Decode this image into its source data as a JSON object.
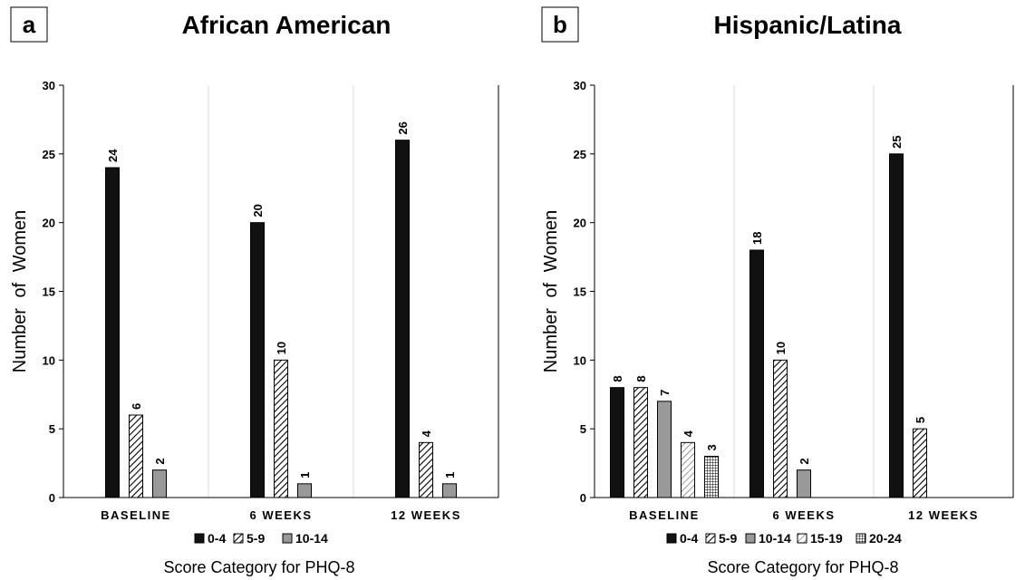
{
  "chart_data": [
    {
      "type": "bar",
      "panel": "a",
      "title": "African American",
      "ylabel": "Number of Women",
      "xlabel": "Score Category for PHQ-8",
      "ylim": [
        0,
        30
      ],
      "yticks": [
        "0",
        "5",
        "10",
        "15",
        "20",
        "25",
        "30"
      ],
      "categories": [
        "BASELINE",
        "6 WEEKS",
        "12 WEEKS"
      ],
      "legend_position": "bottom",
      "series": [
        {
          "name": "0-4",
          "pattern": "solid-black",
          "values": [
            24,
            20,
            26
          ]
        },
        {
          "name": "5-9",
          "pattern": "hatch",
          "values": [
            6,
            10,
            4
          ]
        },
        {
          "name": "10-14",
          "pattern": "solid-gray",
          "values": [
            2,
            1,
            1
          ]
        }
      ]
    },
    {
      "type": "bar",
      "panel": "b",
      "title": "Hispanic/Latina",
      "ylabel": "Number of Women",
      "xlabel": "Score Category for PHQ-8",
      "ylim": [
        0,
        30
      ],
      "yticks": [
        "0",
        "5",
        "10",
        "15",
        "20",
        "25",
        "30"
      ],
      "categories": [
        "BASELINE",
        "6 WEEKS",
        "12 WEEKS"
      ],
      "legend_position": "bottom",
      "series": [
        {
          "name": "0-4",
          "pattern": "solid-black",
          "values": [
            8,
            18,
            25
          ]
        },
        {
          "name": "5-9",
          "pattern": "hatch",
          "values": [
            8,
            10,
            5
          ]
        },
        {
          "name": "10-14",
          "pattern": "solid-gray",
          "values": [
            7,
            2,
            null
          ]
        },
        {
          "name": "15-19",
          "pattern": "hatch-light",
          "values": [
            4,
            null,
            null
          ]
        },
        {
          "name": "20-24",
          "pattern": "grid",
          "values": [
            3,
            null,
            null
          ]
        }
      ]
    }
  ]
}
